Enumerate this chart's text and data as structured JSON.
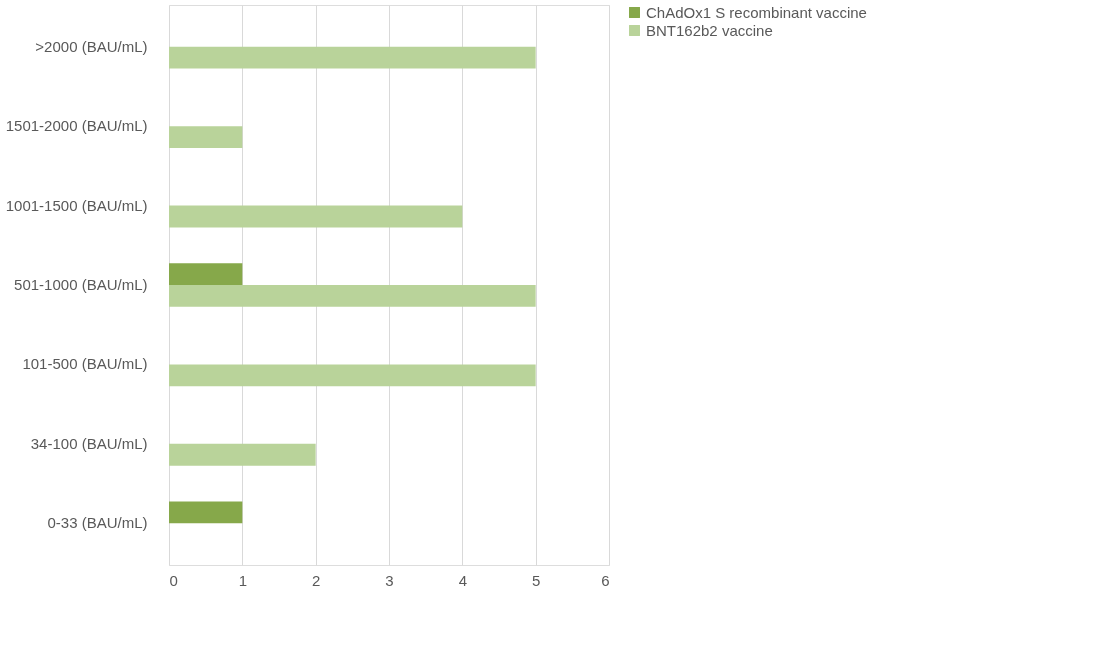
{
  "chart_data": {
    "type": "bar",
    "orientation": "horizontal",
    "categories": [
      ">2000 (BAU/mL)",
      "1501-2000 (BAU/mL)",
      "1001-1500 (BAU/mL)",
      "501-1000 (BAU/mL)",
      "101-500 (BAU/mL)",
      "34-100 (BAU/mL)",
      "0-33 (BAU/mL)"
    ],
    "series": [
      {
        "name": "ChAdOx1 S recombinant vaccine",
        "color": "#86a84a",
        "values": [
          null,
          null,
          null,
          1,
          null,
          null,
          1
        ]
      },
      {
        "name": "BNT162b2 vaccine",
        "color": "#b9d39a",
        "values": [
          5,
          1,
          4,
          5,
          5,
          2,
          null
        ]
      }
    ],
    "xlim": [
      0,
      6
    ],
    "xticks": [
      0,
      1,
      2,
      3,
      4,
      5,
      6
    ],
    "grid": "x",
    "legend": "right"
  }
}
